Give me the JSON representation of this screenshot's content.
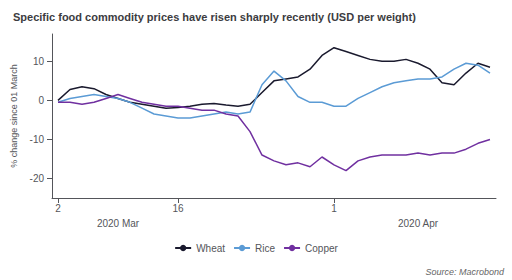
{
  "chart_data": {
    "type": "line",
    "title": "Specific food commodity prices have risen sharply recently (USD per weight)",
    "y_label": "% change since 01 March",
    "source": "Source: Macrobond",
    "categories": [
      "2",
      null,
      null,
      null,
      null,
      null,
      null,
      null,
      null,
      null,
      "16",
      null,
      null,
      null,
      null,
      null,
      null,
      null,
      null,
      null,
      null,
      null,
      null,
      "1",
      null,
      null,
      null,
      null,
      null,
      null,
      null,
      null,
      null,
      null,
      null,
      null,
      null
    ],
    "annotations": [
      {
        "text": "2020 Mar",
        "x": 5
      },
      {
        "text": "2020 Apr",
        "x": 30
      }
    ],
    "series": [
      {
        "name": "Wheat",
        "color": "#1a1a2e",
        "values": [
          0,
          2.8,
          3.5,
          3.0,
          1.5,
          0.5,
          -0.5,
          -1.0,
          -1.5,
          -2.0,
          -1.8,
          -1.5,
          -1.0,
          -0.8,
          -1.2,
          -1.5,
          -1.0,
          2.0,
          5.0,
          5.5,
          6.0,
          8.0,
          11.5,
          13.5,
          12.5,
          11.5,
          10.5,
          10.0,
          10.0,
          10.5,
          9.5,
          8.0,
          4.5,
          4.0,
          7.0,
          9.5,
          8.5
        ]
      },
      {
        "name": "Rice",
        "color": "#5b9bd5",
        "values": [
          -0.5,
          0.5,
          1.0,
          1.5,
          1.0,
          0.5,
          -0.5,
          -2.0,
          -3.5,
          -4.0,
          -4.5,
          -4.5,
          -4.0,
          -3.5,
          -3.0,
          -3.5,
          -3.0,
          4.0,
          7.5,
          5.0,
          1.0,
          -0.5,
          -0.5,
          -1.5,
          -1.5,
          0.5,
          2.0,
          3.5,
          4.5,
          5.0,
          5.5,
          5.5,
          6.0,
          8.0,
          9.5,
          9.0,
          7.0
        ]
      },
      {
        "name": "Copper",
        "color": "#7030a0",
        "values": [
          -0.5,
          -0.5,
          -1.0,
          -0.5,
          0.5,
          1.5,
          0.5,
          -0.5,
          -1.0,
          -1.5,
          -1.5,
          -2.0,
          -2.5,
          -2.5,
          -3.5,
          -4.0,
          -8.0,
          -14.0,
          -15.5,
          -16.5,
          -16.0,
          -17.0,
          -14.5,
          -16.5,
          -18.0,
          -15.5,
          -14.5,
          -14.0,
          -14.0,
          -14.0,
          -13.5,
          -14.0,
          -13.5,
          -13.5,
          -12.5,
          -11.0,
          -10.0
        ]
      }
    ],
    "ylim": [
      -25,
      17
    ],
    "yticks": [
      -20,
      -10,
      0,
      10
    ],
    "grid": false,
    "legend": "bottom"
  }
}
